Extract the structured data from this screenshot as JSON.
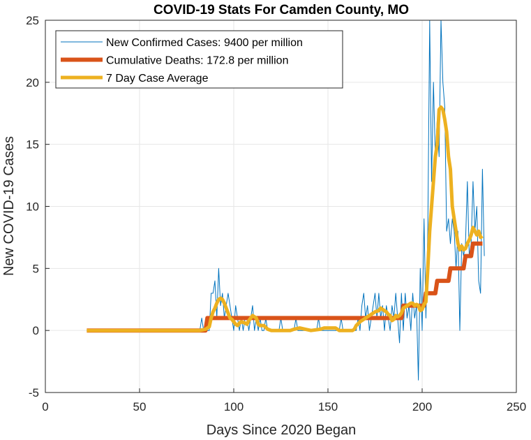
{
  "chart_data": {
    "type": "line",
    "title": "COVID-19 Stats For Camden County, MO",
    "xlabel": "Days Since 2020 Began",
    "ylabel": "New COVID-19 Cases",
    "xlim": [
      0,
      250
    ],
    "ylim": [
      -5,
      25
    ],
    "xticks": [
      0,
      50,
      100,
      150,
      200,
      250
    ],
    "yticks": [
      -5,
      0,
      5,
      10,
      15,
      20,
      25
    ],
    "grid": true,
    "legend_position": "top-left",
    "series": [
      {
        "name": "New Confirmed Cases: 9400 per million",
        "color": "#0072BD",
        "width": 1,
        "points": [
          [
            22,
            0
          ],
          [
            82,
            0
          ],
          [
            83,
            1
          ],
          [
            84,
            0
          ],
          [
            87,
            0
          ],
          [
            88,
            3
          ],
          [
            89,
            3
          ],
          [
            90,
            4
          ],
          [
            91,
            1
          ],
          [
            92,
            5
          ],
          [
            93,
            2
          ],
          [
            94,
            3
          ],
          [
            95,
            1
          ],
          [
            96,
            2
          ],
          [
            97,
            3
          ],
          [
            98,
            2
          ],
          [
            99,
            1
          ],
          [
            100,
            0
          ],
          [
            101,
            2
          ],
          [
            102,
            1
          ],
          [
            103,
            0
          ],
          [
            104,
            1
          ],
          [
            105,
            0
          ],
          [
            106,
            1
          ],
          [
            107,
            1
          ],
          [
            108,
            0
          ],
          [
            109,
            1
          ],
          [
            110,
            2
          ],
          [
            111,
            0
          ],
          [
            112,
            1
          ],
          [
            113,
            0
          ],
          [
            114,
            1
          ],
          [
            115,
            0
          ],
          [
            116,
            0
          ],
          [
            117,
            1
          ],
          [
            118,
            0
          ],
          [
            124,
            0
          ],
          [
            125,
            1
          ],
          [
            126,
            0
          ],
          [
            132,
            0
          ],
          [
            133,
            1
          ],
          [
            134,
            0
          ],
          [
            144,
            0
          ],
          [
            145,
            1
          ],
          [
            146,
            0
          ],
          [
            156,
            0
          ],
          [
            157,
            1
          ],
          [
            158,
            0
          ],
          [
            165,
            0
          ],
          [
            166,
            1
          ],
          [
            167,
            0
          ],
          [
            168,
            2
          ],
          [
            169,
            3
          ],
          [
            170,
            1
          ],
          [
            171,
            2
          ],
          [
            172,
            0
          ],
          [
            173,
            1
          ],
          [
            174,
            2
          ],
          [
            175,
            3
          ],
          [
            176,
            1
          ],
          [
            177,
            3
          ],
          [
            178,
            1
          ],
          [
            179,
            2
          ],
          [
            180,
            0
          ],
          [
            181,
            2
          ],
          [
            182,
            1
          ],
          [
            183,
            0
          ],
          [
            184,
            2
          ],
          [
            185,
            1
          ],
          [
            186,
            3
          ],
          [
            187,
            1
          ],
          [
            188,
            -1
          ],
          [
            189,
            3
          ],
          [
            190,
            0
          ],
          [
            191,
            3
          ],
          [
            192,
            1
          ],
          [
            193,
            2
          ],
          [
            194,
            0
          ],
          [
            195,
            3
          ],
          [
            196,
            1
          ],
          [
            197,
            2
          ],
          [
            198,
            -4
          ],
          [
            199,
            5
          ],
          [
            200,
            0
          ],
          [
            201,
            9
          ],
          [
            202,
            1
          ],
          [
            203,
            8
          ],
          [
            204,
            25
          ],
          [
            205,
            12
          ],
          [
            206,
            20
          ],
          [
            207,
            14
          ],
          [
            208,
            17
          ],
          [
            209,
            14
          ],
          [
            210,
            25
          ],
          [
            211,
            20
          ],
          [
            212,
            18
          ],
          [
            213,
            8
          ],
          [
            214,
            9
          ],
          [
            215,
            7
          ],
          [
            216,
            9
          ],
          [
            217,
            8
          ],
          [
            218,
            5
          ],
          [
            219,
            8
          ],
          [
            220,
            0
          ],
          [
            221,
            7
          ],
          [
            222,
            6
          ],
          [
            223,
            7
          ],
          [
            224,
            12
          ],
          [
            225,
            6
          ],
          [
            226,
            7
          ],
          [
            227,
            12
          ],
          [
            228,
            8
          ],
          [
            229,
            10
          ],
          [
            230,
            4
          ],
          [
            231,
            3
          ],
          [
            232,
            13
          ],
          [
            233,
            6
          ]
        ]
      },
      {
        "name": "Cumulative Deaths: 172.8 per million",
        "color": "#D95319",
        "width": 6,
        "points": [
          [
            22,
            0
          ],
          [
            82,
            0
          ],
          [
            85,
            0
          ],
          [
            86,
            1
          ],
          [
            189,
            1
          ],
          [
            190,
            2
          ],
          [
            201,
            2
          ],
          [
            202,
            3
          ],
          [
            207,
            3
          ],
          [
            208,
            4
          ],
          [
            213,
            4
          ],
          [
            214,
            4
          ],
          [
            215,
            5
          ],
          [
            222,
            5
          ],
          [
            223,
            6
          ],
          [
            226,
            6
          ],
          [
            227,
            7
          ],
          [
            232,
            7
          ]
        ]
      },
      {
        "name": "7 Day Case Average",
        "color": "#EDB120",
        "width": 5,
        "points": [
          [
            22,
            0
          ],
          [
            82,
            0
          ],
          [
            85,
            0.1
          ],
          [
            87,
            0.3
          ],
          [
            88,
            1
          ],
          [
            89,
            1.5
          ],
          [
            90,
            1.8
          ],
          [
            91,
            2.2
          ],
          [
            92,
            2.5
          ],
          [
            93,
            2.6
          ],
          [
            94,
            2.5
          ],
          [
            95,
            2.2
          ],
          [
            96,
            1.8
          ],
          [
            97,
            1.4
          ],
          [
            98,
            1
          ],
          [
            99,
            0.9
          ],
          [
            100,
            0.7
          ],
          [
            101,
            0.5
          ],
          [
            102,
            0.4
          ],
          [
            103,
            0.6
          ],
          [
            104,
            0.7
          ],
          [
            106,
            0.6
          ],
          [
            107,
            0.5
          ],
          [
            108,
            0.8
          ],
          [
            110,
            1.2
          ],
          [
            112,
            1.0
          ],
          [
            113,
            0.5
          ],
          [
            114,
            0.4
          ],
          [
            116,
            0.4
          ],
          [
            118,
            0.1
          ],
          [
            120,
            0
          ],
          [
            130,
            0
          ],
          [
            132,
            0.1
          ],
          [
            135,
            0.2
          ],
          [
            138,
            0.1
          ],
          [
            141,
            0
          ],
          [
            146,
            0.1
          ],
          [
            148,
            0.2
          ],
          [
            154,
            0.2
          ],
          [
            156,
            0
          ],
          [
            160,
            0
          ],
          [
            163,
            0
          ],
          [
            164,
            0.1
          ],
          [
            165,
            0.4
          ],
          [
            167,
            0.7
          ],
          [
            169,
            0.9
          ],
          [
            171,
            1.1
          ],
          [
            173,
            1.3
          ],
          [
            175,
            1.5
          ],
          [
            177,
            1.6
          ],
          [
            178,
            1.8
          ],
          [
            179,
            1.7
          ],
          [
            181,
            1.5
          ],
          [
            182,
            1.3
          ],
          [
            183,
            1.2
          ],
          [
            184,
            0.8
          ],
          [
            185,
            0.9
          ],
          [
            186,
            1.2
          ],
          [
            187,
            1.1
          ],
          [
            188,
            1.2
          ],
          [
            189,
            1.4
          ],
          [
            190,
            1.8
          ],
          [
            191,
            1.9
          ],
          [
            192,
            2.0
          ],
          [
            193,
            2.1
          ],
          [
            194,
            2.2
          ],
          [
            195,
            2.2
          ],
          [
            196,
            2.0
          ],
          [
            197,
            2.1
          ],
          [
            198,
            2.0
          ],
          [
            199,
            1.6
          ],
          [
            200,
            1.7
          ],
          [
            201,
            2.1
          ],
          [
            202,
            2.3
          ],
          [
            203,
            5
          ],
          [
            204,
            8
          ],
          [
            205,
            10
          ],
          [
            206,
            12
          ],
          [
            207,
            14
          ],
          [
            208,
            15
          ],
          [
            209,
            17.8
          ],
          [
            210,
            18
          ],
          [
            211,
            17.8
          ],
          [
            212,
            17
          ],
          [
            213,
            16
          ],
          [
            214,
            14
          ],
          [
            215,
            13
          ],
          [
            216,
            10
          ],
          [
            217,
            9
          ],
          [
            218,
            8
          ],
          [
            219,
            7
          ],
          [
            220,
            6.5
          ],
          [
            221,
            6.8
          ],
          [
            222,
            6.5
          ],
          [
            223,
            6.6
          ],
          [
            224,
            7
          ],
          [
            225,
            7.3
          ],
          [
            226,
            7.7
          ],
          [
            227,
            8.3
          ],
          [
            228,
            8
          ],
          [
            229,
            7.7
          ],
          [
            230,
            8
          ],
          [
            231,
            7.5
          ],
          [
            232,
            7.6
          ]
        ]
      }
    ]
  }
}
